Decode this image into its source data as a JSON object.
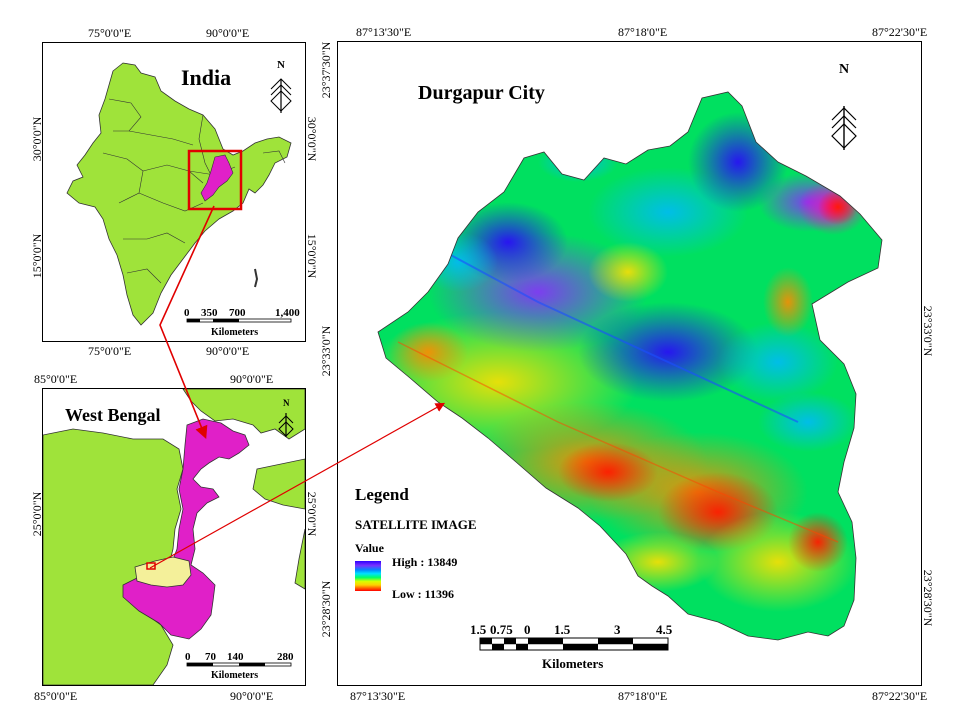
{
  "main_map": {
    "title": "Durgapur City",
    "top_ticks": [
      "87°13'30\"E",
      "87°18'0\"E",
      "87°22'30\"E"
    ],
    "bottom_ticks": [
      "87°13'30\"E",
      "87°18'0\"E",
      "87°22'30\"E"
    ],
    "left_ticks": [
      "23°37'30\"N",
      "23°33'0\"N",
      "23°28'30\"N"
    ],
    "right_ticks": [
      "23°33'0\"N",
      "23°28'30\"N"
    ],
    "north_label": "N",
    "legend": {
      "title": "Legend",
      "subtitle": "SATELLITE IMAGE",
      "value_label": "Value",
      "high_label": "High : 13849",
      "low_label": "Low : 11396",
      "ramp_colors": [
        "#2b00ff",
        "#7a33ff",
        "#0088ff",
        "#00e0ff",
        "#00ff66",
        "#d8ff00",
        "#ffd000",
        "#ff6600",
        "#ff0000"
      ]
    },
    "scale": {
      "labels": [
        "1.5",
        "0.75",
        "0",
        "1.5",
        "3",
        "4.5"
      ],
      "unit": "Kilometers"
    }
  },
  "india_map": {
    "title": "India",
    "top_ticks": [
      "75°0'0\"E",
      "90°0'0\"E"
    ],
    "bottom_ticks": [
      "75°0'0\"E",
      "90°0'0\"E"
    ],
    "left_ticks": [
      "30°0'0\"N",
      "15°0'0\"N"
    ],
    "right_ticks": [
      "30°0'0\"N",
      "15°0'0\"N"
    ],
    "north_label": "N",
    "scale": {
      "labels": [
        "0",
        "350",
        "700",
        "1,400"
      ],
      "unit": "Kilometers"
    },
    "colors": {
      "land": "#9fe33a",
      "highlight": "#e020c8",
      "box": "#e00000"
    }
  },
  "wb_map": {
    "title": "West Bengal",
    "top_ticks": [
      "85°0'0\"E",
      "90°0'0\"E"
    ],
    "bottom_ticks": [
      "85°0'0\"E",
      "90°0'0\"E"
    ],
    "left_ticks": [
      "25°0'0\"N"
    ],
    "right_ticks": [
      "25°0'0\"N"
    ],
    "north_label": "N",
    "scale": {
      "labels": [
        "0",
        "70",
        "140",
        "280"
      ],
      "unit": "Kilometers"
    },
    "colors": {
      "state": "#e020c8",
      "neighbor": "#9fe33a",
      "district": "#f4f09a"
    }
  }
}
